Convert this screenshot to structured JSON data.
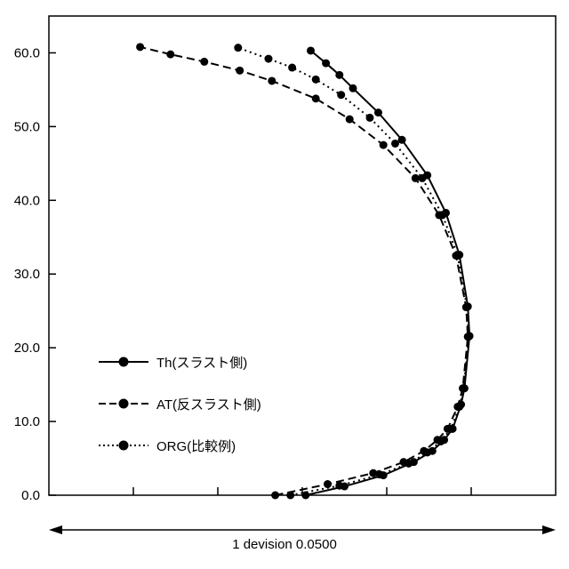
{
  "annotation": {
    "scale_label": "1 devision 0.0500"
  },
  "chart_data": {
    "type": "line",
    "title": "",
    "xlabel": "",
    "ylabel": "",
    "x_division_value": 0.05,
    "xlim": [
      -0.25,
      0.05
    ],
    "ylim": [
      0,
      65
    ],
    "y_ticks": [
      0,
      10,
      20,
      30,
      40,
      50,
      60
    ],
    "y_tick_labels": [
      "0.0",
      "10.0",
      "20.0",
      "30.0",
      "40.0",
      "50.0",
      "60.0"
    ],
    "x_ticks": [
      -0.2,
      -0.15,
      -0.1,
      -0.05,
      0
    ],
    "grid": false,
    "legend_position": "inside-left-middle",
    "series": [
      {
        "name": "Th(スラスト側)",
        "style": "solid",
        "color": "#000000",
        "points": [
          [
            -0.098,
            0.0
          ],
          [
            -0.075,
            1.2
          ],
          [
            -0.052,
            2.7
          ],
          [
            -0.034,
            4.5
          ],
          [
            -0.023,
            6.0
          ],
          [
            -0.016,
            7.5
          ],
          [
            -0.011,
            9.0
          ],
          [
            -0.006,
            12.3
          ],
          [
            -0.004,
            14.5
          ],
          [
            -0.001,
            21.6
          ],
          [
            -0.002,
            25.6
          ],
          [
            -0.007,
            32.6
          ],
          [
            -0.015,
            38.3
          ],
          [
            -0.026,
            43.4
          ],
          [
            -0.041,
            48.2
          ],
          [
            -0.055,
            51.9
          ],
          [
            -0.07,
            55.2
          ],
          [
            -0.078,
            57.0
          ],
          [
            -0.086,
            58.6
          ],
          [
            -0.095,
            60.3
          ]
        ]
      },
      {
        "name": "AT(反スラスト側)",
        "style": "dashed",
        "color": "#000000",
        "points": [
          [
            -0.116,
            0.0
          ],
          [
            -0.085,
            1.5
          ],
          [
            -0.058,
            3.0
          ],
          [
            -0.04,
            4.5
          ],
          [
            -0.028,
            6.0
          ],
          [
            -0.02,
            7.5
          ],
          [
            -0.014,
            9.0
          ],
          [
            -0.008,
            12.0
          ],
          [
            -0.005,
            14.5
          ],
          [
            -0.002,
            21.5
          ],
          [
            -0.003,
            25.5
          ],
          [
            -0.009,
            32.5
          ],
          [
            -0.019,
            38.0
          ],
          [
            -0.033,
            43.0
          ],
          [
            -0.052,
            47.5
          ],
          [
            -0.072,
            51.0
          ],
          [
            -0.092,
            53.8
          ],
          [
            -0.118,
            56.2
          ],
          [
            -0.137,
            57.6
          ],
          [
            -0.158,
            58.8
          ],
          [
            -0.178,
            59.8
          ],
          [
            -0.196,
            60.8
          ]
        ]
      },
      {
        "name": "ORG(比較例)",
        "style": "dotted",
        "color": "#000000",
        "points": [
          [
            -0.107,
            0.0
          ],
          [
            -0.078,
            1.3
          ],
          [
            -0.054,
            2.8
          ],
          [
            -0.037,
            4.3
          ],
          [
            -0.026,
            5.8
          ],
          [
            -0.018,
            7.3
          ],
          [
            -0.012,
            9.0
          ],
          [
            -0.007,
            12.0
          ],
          [
            -0.0045,
            14.5
          ],
          [
            -0.0015,
            21.5
          ],
          [
            -0.0025,
            25.5
          ],
          [
            -0.008,
            32.5
          ],
          [
            -0.017,
            38.0
          ],
          [
            -0.029,
            43.0
          ],
          [
            -0.045,
            47.7
          ],
          [
            -0.06,
            51.2
          ],
          [
            -0.077,
            54.3
          ],
          [
            -0.092,
            56.4
          ],
          [
            -0.106,
            58.0
          ],
          [
            -0.12,
            59.2
          ],
          [
            -0.138,
            60.7
          ]
        ]
      }
    ]
  }
}
